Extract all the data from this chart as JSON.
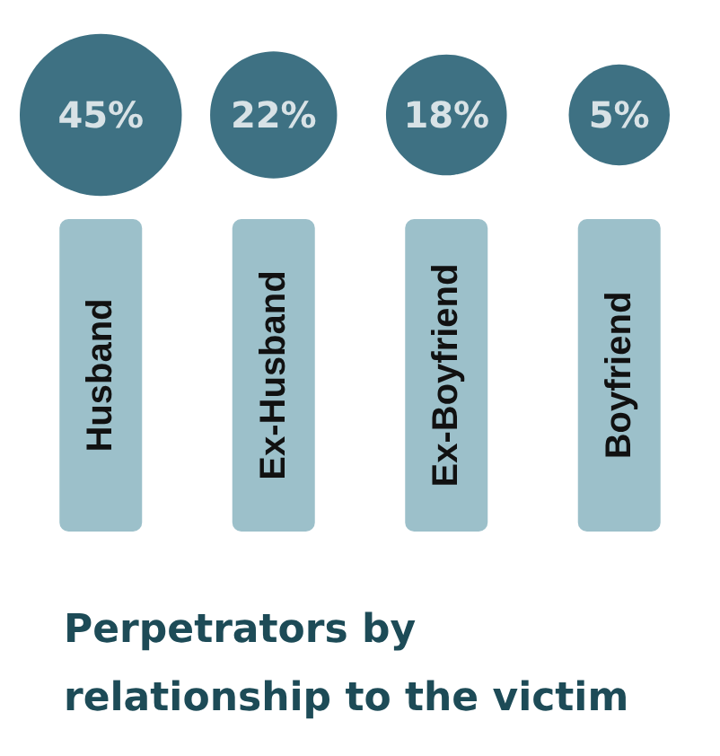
{
  "chart_data": {
    "type": "other",
    "title": "Perpetrators by relationship to the victim",
    "categories": [
      "Husband",
      "Ex-Husband",
      "Ex-Boyfriend",
      "Boyfriend"
    ],
    "values": [
      45,
      22,
      18,
      5
    ],
    "value_labels": [
      "45%",
      "22%",
      "18%",
      "5%"
    ],
    "color": "#0e4d64"
  }
}
